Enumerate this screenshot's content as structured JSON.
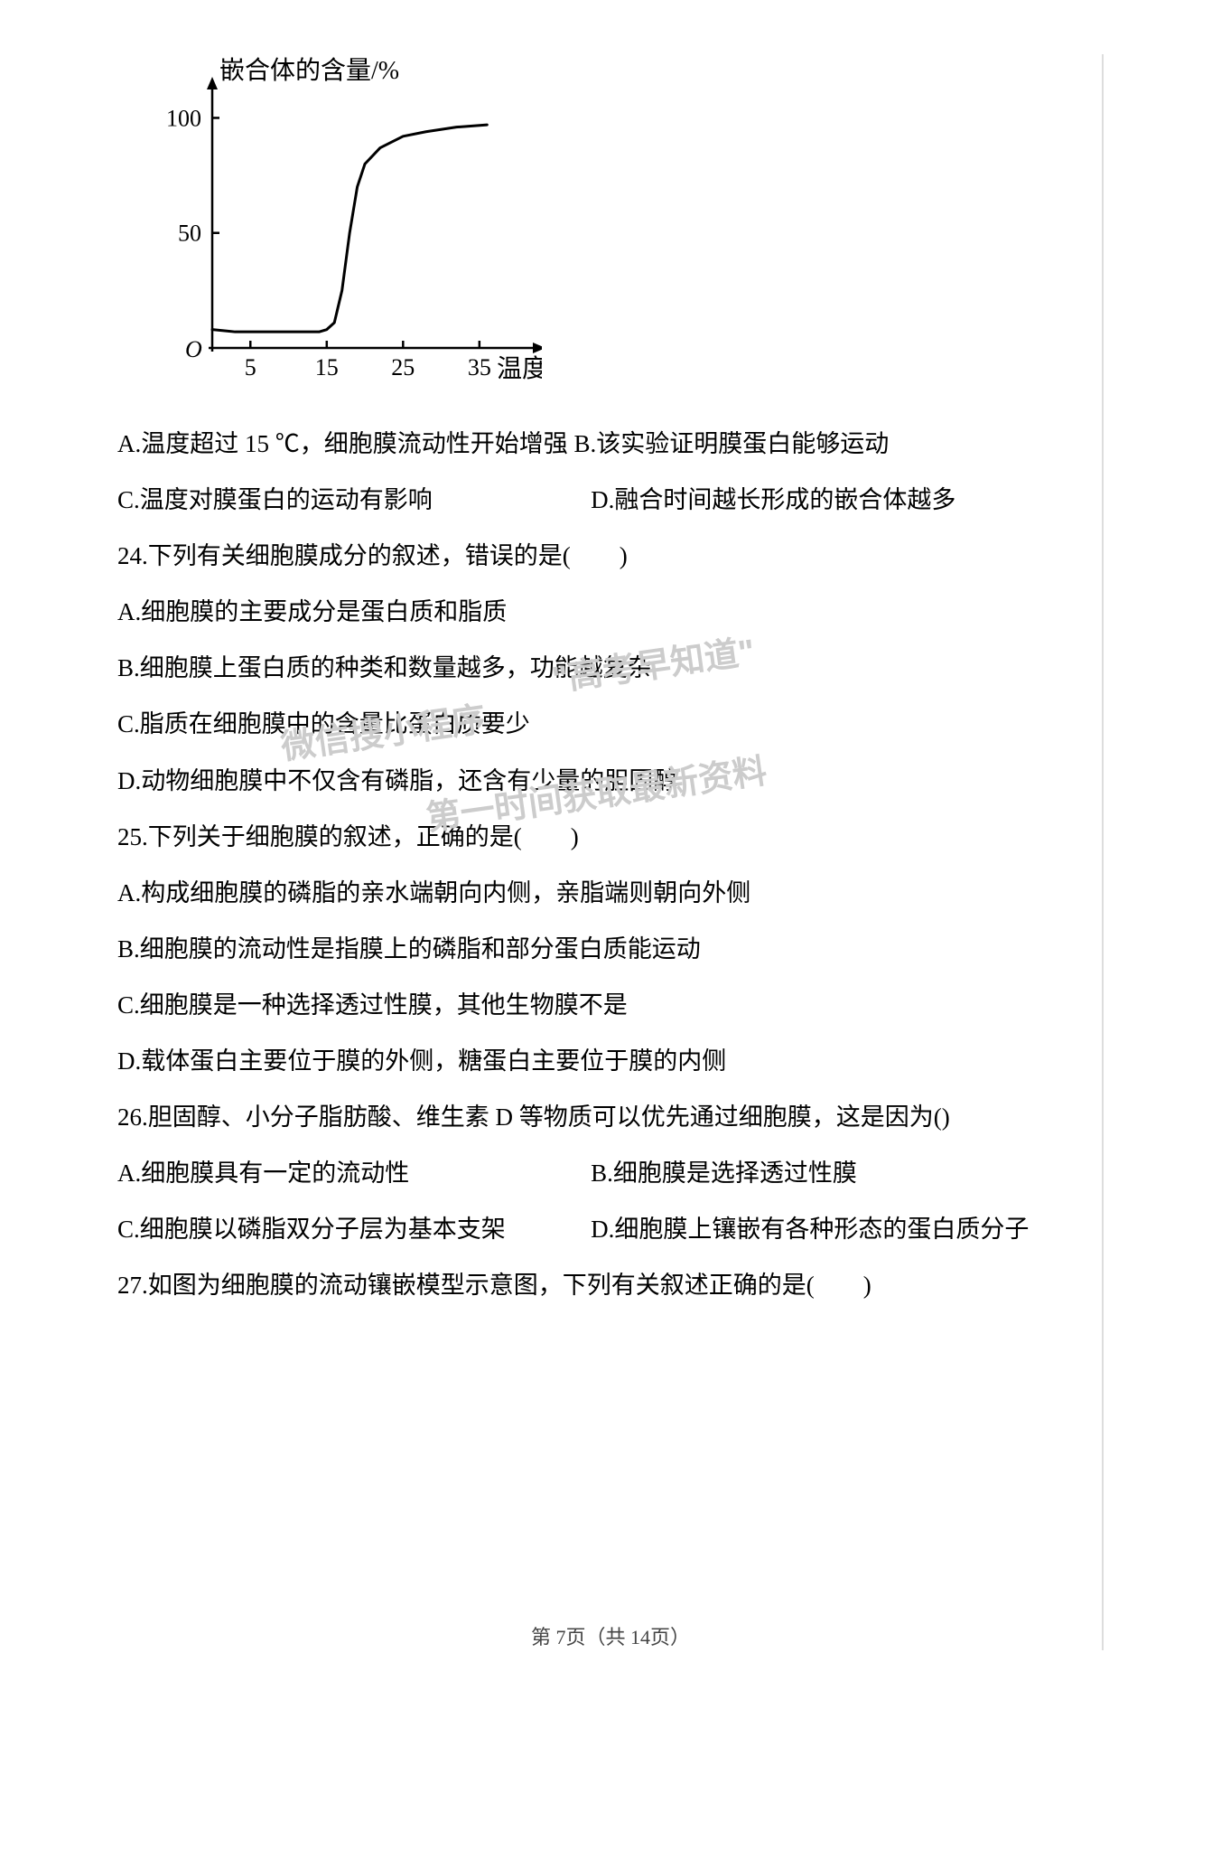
{
  "chart": {
    "type": "line",
    "ylabel": "嵌合体的含量/%",
    "xlabel": "温度/℃",
    "origin_label": "O",
    "yticks": [
      50,
      100
    ],
    "xticks": [
      5,
      15,
      25,
      35
    ],
    "ylim": [
      0,
      110
    ],
    "xlim": [
      0,
      42
    ],
    "curve_points": [
      [
        0,
        8
      ],
      [
        3,
        7
      ],
      [
        6,
        7
      ],
      [
        9,
        7
      ],
      [
        12,
        7
      ],
      [
        14,
        7
      ],
      [
        15,
        8
      ],
      [
        16,
        11
      ],
      [
        17,
        25
      ],
      [
        18,
        50
      ],
      [
        19,
        70
      ],
      [
        20,
        80
      ],
      [
        22,
        87
      ],
      [
        25,
        92
      ],
      [
        28,
        94
      ],
      [
        32,
        96
      ],
      [
        36,
        97
      ]
    ],
    "line_color": "#000000",
    "line_width": 3,
    "axis_color": "#000000",
    "axis_width": 2.5,
    "label_fontsize": 26,
    "tick_fontsize": 26,
    "background_color": "#ffffff",
    "ylabel_fontsize": 28,
    "xlabel_fontsize": 28
  },
  "lines": {
    "l1": "A.温度超过 15 ℃，细胞膜流动性开始增强 B.该实验证明膜蛋白能够运动",
    "l2a": "C.温度对膜蛋白的运动有影响",
    "l2b": "D.融合时间越长形成的嵌合体越多",
    "l3": "24.下列有关细胞膜成分的叙述，错误的是(　　)",
    "l4": "A.细胞膜的主要成分是蛋白质和脂质",
    "l5": "B.细胞膜上蛋白质的种类和数量越多，功能越复杂",
    "l6": "C.脂质在细胞膜中的含量比蛋白质要少",
    "l7": "D.动物细胞膜中不仅含有磷脂，还含有少量的胆固醇",
    "l8": "25.下列关于细胞膜的叙述，正确的是(　　)",
    "l9": "A.构成细胞膜的磷脂的亲水端朝向内侧，亲脂端则朝向外侧",
    "l10": "B.细胞膜的流动性是指膜上的磷脂和部分蛋白质能运动",
    "l11": "C.细胞膜是一种选择透过性膜，其他生物膜不是",
    "l12": "D.载体蛋白主要位于膜的外侧，糖蛋白主要位于膜的内侧",
    "l13": "26.胆固醇、小分子脂肪酸、维生素 D 等物质可以优先通过细胞膜，这是因为()",
    "l14a": "A.细胞膜具有一定的流动性",
    "l14b": "B.细胞膜是选择透过性膜",
    "l15a": "C.细胞膜以磷脂双分子层为基本支架",
    "l15b": "D.细胞膜上镶嵌有各种形态的蛋白质分子",
    "l16": "27.如图为细胞膜的流动镶嵌模型示意图，下列有关叙述正确的是(　　)"
  },
  "footer": "第 7页（共 14页）",
  "watermarks": {
    "w1": "\"高考早知道\"",
    "w2": "微信搜小程序",
    "w3": "第一时间获取最新资料"
  }
}
